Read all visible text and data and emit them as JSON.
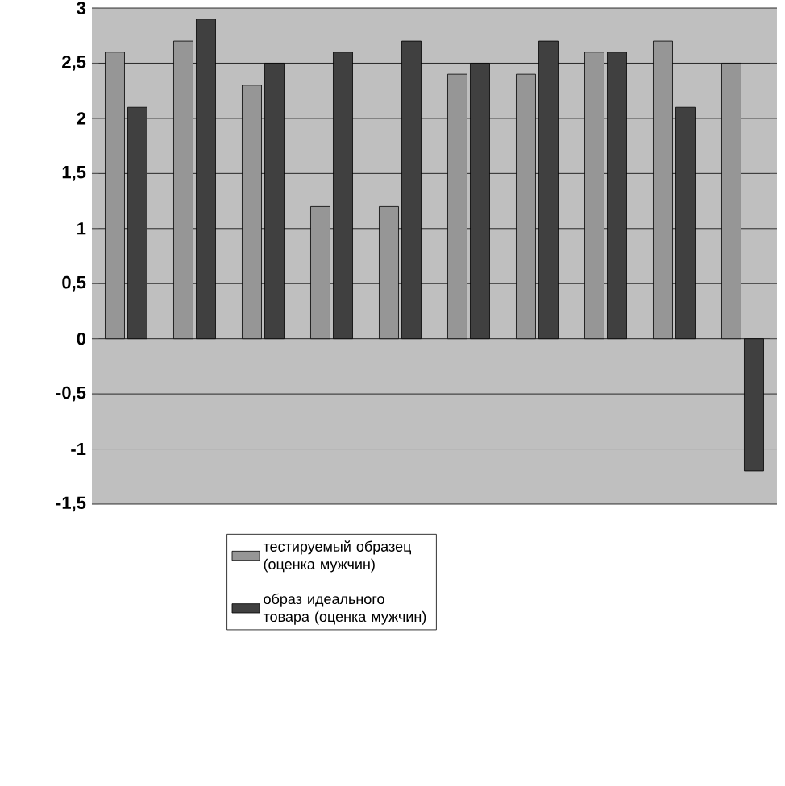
{
  "chart_data": {
    "type": "bar",
    "categories": [
      null,
      null,
      null,
      null,
      null,
      null,
      null,
      null,
      null,
      null
    ],
    "series": [
      {
        "name": "тестируемый образец (оценка мужчин)",
        "color": "#969696",
        "values": [
          2.6,
          2.7,
          2.3,
          1.2,
          1.2,
          2.4,
          2.4,
          2.6,
          2.7,
          2.5
        ]
      },
      {
        "name": "образ идеального товара (оценка мужчин)",
        "color": "#404040",
        "values": [
          2.1,
          2.9,
          2.5,
          2.6,
          2.7,
          2.5,
          2.7,
          2.6,
          2.1,
          -1.2
        ]
      }
    ],
    "ylim": [
      -1.5,
      3
    ],
    "yticks": [
      {
        "value": -1.5,
        "label": "-1,5"
      },
      {
        "value": -1,
        "label": "-1"
      },
      {
        "value": -0.5,
        "label": "-0,5"
      },
      {
        "value": 0,
        "label": "0"
      },
      {
        "value": 0.5,
        "label": "0,5"
      },
      {
        "value": 1,
        "label": "1"
      },
      {
        "value": 1.5,
        "label": "1,5"
      },
      {
        "value": 2,
        "label": "2"
      },
      {
        "value": 2.5,
        "label": "2,5"
      },
      {
        "value": 3,
        "label": "3"
      }
    ],
    "grid": "y",
    "legend": "bottom",
    "tick_labels": "y"
  }
}
